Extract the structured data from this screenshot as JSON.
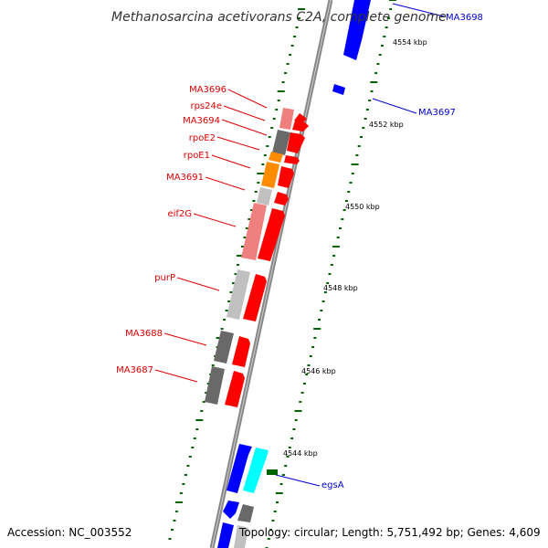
{
  "title": "Methanosarcina acetivorans C2A, complete genome",
  "footer": {
    "accession": "Accession: NC_003552",
    "summary": "Topology: circular; Length: 5,751,492 bp; Genes: 4,609"
  },
  "colors": {
    "backbone": "#888888",
    "forward_gene": "#ff0000",
    "blue_gene": "#0000ff",
    "cyan_gene": "#00ffff",
    "orange_gene": "#ff8c00",
    "pink_gene": "#f08080",
    "dark_gray_gene": "#696969",
    "light_gray_gene": "#c0c0c0",
    "tick_green": "#006400",
    "red_label": "#dd0000",
    "blue_label": "#0000cc"
  },
  "position_labels": [
    "4554 kbp",
    "4552 kbp",
    "4550 kbp",
    "4548 kbp",
    "4546 kbp",
    "4544 kbp"
  ],
  "gene_labels": {
    "red": [
      "MA3696",
      "rps24e",
      "MA3694",
      "rpoE2",
      "rpoE1",
      "MA3691",
      "eif2G",
      "purP",
      "MA3688",
      "MA3687"
    ],
    "blue": [
      "MA3698",
      "MA3697",
      "egsA"
    ]
  }
}
